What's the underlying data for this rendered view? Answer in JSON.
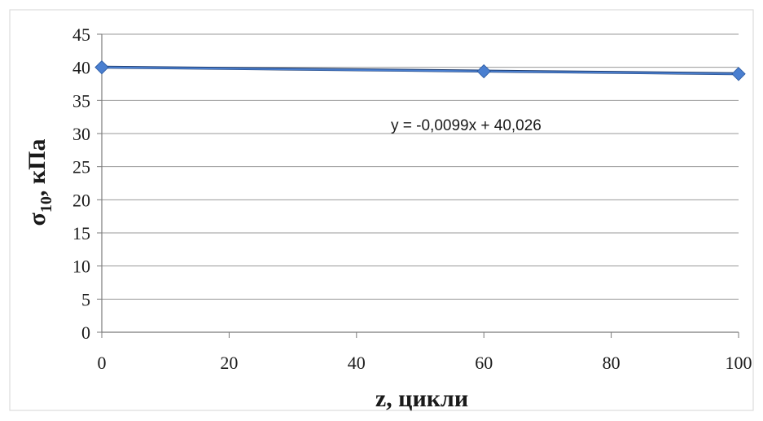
{
  "chart_data": {
    "type": "scatter",
    "title": "",
    "xlabel": "z, цикли",
    "ylabel_main": "σ",
    "ylabel_sub": "10",
    "ylabel_rest": ", кПа",
    "x_ticks": [
      "0",
      "20",
      "40",
      "60",
      "80",
      "100"
    ],
    "y_ticks": [
      "0",
      "5",
      "10",
      "15",
      "20",
      "25",
      "30",
      "35",
      "40",
      "45"
    ],
    "xlim": [
      0,
      100
    ],
    "ylim": [
      0,
      45
    ],
    "grid": true,
    "series": [
      {
        "x": [
          0,
          60,
          100
        ],
        "y": [
          40,
          39.4,
          39
        ]
      }
    ],
    "trendline": {
      "slope": -0.0099,
      "intercept": 40.026,
      "label": "y = -0,0099x + 40,026"
    },
    "colors": {
      "marker": "#4a7fd0",
      "line": "#1e3c6e",
      "grid": "#9a9a9a",
      "axis": "#7a7a7a"
    }
  }
}
